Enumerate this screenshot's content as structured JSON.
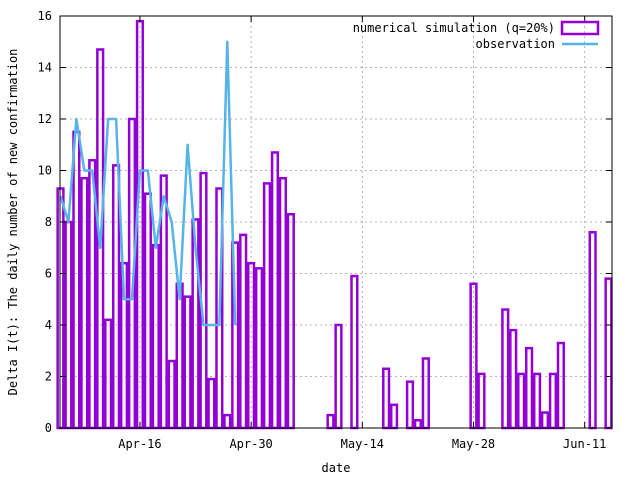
{
  "chart_data": {
    "type": "bar",
    "title": "",
    "xlabel": "date",
    "ylabel": "Delta I(t): The daily number of new confirmation",
    "ylim": [
      0,
      16
    ],
    "yticks": [
      0,
      2,
      4,
      6,
      8,
      10,
      12,
      14,
      16
    ],
    "xlim": [
      "2020-04-06",
      "2020-06-14"
    ],
    "xticks": [
      {
        "date": "2020-04-16",
        "label": "Apr-16"
      },
      {
        "date": "2020-04-30",
        "label": "Apr-30"
      },
      {
        "date": "2020-05-14",
        "label": "May-14"
      },
      {
        "date": "2020-05-28",
        "label": "May-28"
      },
      {
        "date": "2020-06-11",
        "label": "Jun-11"
      }
    ],
    "grid": true,
    "legend_position": "top-right",
    "colors": {
      "simulation": "#9400d3",
      "observation": "#56b4e9"
    },
    "series": [
      {
        "name": "numerical simulation (q=20%)",
        "style": "hollow-bar",
        "dates": [
          "2020-04-06",
          "2020-04-07",
          "2020-04-08",
          "2020-04-09",
          "2020-04-10",
          "2020-04-11",
          "2020-04-12",
          "2020-04-13",
          "2020-04-14",
          "2020-04-15",
          "2020-04-16",
          "2020-04-17",
          "2020-04-18",
          "2020-04-19",
          "2020-04-20",
          "2020-04-21",
          "2020-04-22",
          "2020-04-23",
          "2020-04-24",
          "2020-04-25",
          "2020-04-26",
          "2020-04-27",
          "2020-04-28",
          "2020-04-29",
          "2020-04-30",
          "2020-05-01",
          "2020-05-02",
          "2020-05-03",
          "2020-05-04",
          "2020-05-05",
          "2020-05-06",
          "2020-05-07",
          "2020-05-08",
          "2020-05-09",
          "2020-05-10",
          "2020-05-11",
          "2020-05-12",
          "2020-05-13",
          "2020-05-14",
          "2020-05-15",
          "2020-05-16",
          "2020-05-17",
          "2020-05-18",
          "2020-05-19",
          "2020-05-20",
          "2020-05-21",
          "2020-05-22",
          "2020-05-23",
          "2020-05-24",
          "2020-05-25",
          "2020-05-26",
          "2020-05-27",
          "2020-05-28",
          "2020-05-29",
          "2020-05-30",
          "2020-05-31",
          "2020-06-01",
          "2020-06-02",
          "2020-06-03",
          "2020-06-04",
          "2020-06-05",
          "2020-06-06",
          "2020-06-07",
          "2020-06-08",
          "2020-06-09",
          "2020-06-10",
          "2020-06-11",
          "2020-06-12",
          "2020-06-13",
          "2020-06-14"
        ],
        "values": [
          9.3,
          8.0,
          11.5,
          9.7,
          10.4,
          14.7,
          4.2,
          10.2,
          6.4,
          12.0,
          15.8,
          9.1,
          7.1,
          9.8,
          2.6,
          5.6,
          5.1,
          8.1,
          9.9,
          1.9,
          9.3,
          0.5,
          7.2,
          7.5,
          6.4,
          6.2,
          9.5,
          10.7,
          9.7,
          8.3,
          0,
          0,
          0,
          0,
          0.5,
          4.0,
          0,
          5.9,
          0,
          0,
          0,
          2.3,
          0.9,
          0,
          1.8,
          0.3,
          2.7,
          0,
          0,
          0,
          0,
          0,
          5.6,
          2.1,
          0,
          0,
          4.6,
          3.8,
          2.1,
          3.1,
          2.1,
          0.6,
          2.1,
          3.3,
          0,
          0,
          0,
          7.6,
          0,
          5.8
        ]
      },
      {
        "name": "observation",
        "style": "line",
        "dates": [
          "2020-04-06",
          "2020-04-07",
          "2020-04-08",
          "2020-04-09",
          "2020-04-10",
          "2020-04-11",
          "2020-04-12",
          "2020-04-13",
          "2020-04-14",
          "2020-04-15",
          "2020-04-16",
          "2020-04-17",
          "2020-04-18",
          "2020-04-19",
          "2020-04-20",
          "2020-04-21",
          "2020-04-22",
          "2020-04-23",
          "2020-04-24",
          "2020-04-25",
          "2020-04-26",
          "2020-04-27",
          "2020-04-28"
        ],
        "values": [
          9,
          8,
          12,
          10,
          10,
          7,
          12,
          12,
          5,
          5,
          10,
          10,
          7,
          9,
          8,
          5,
          11,
          7,
          4,
          4,
          4,
          15,
          4
        ]
      }
    ]
  }
}
